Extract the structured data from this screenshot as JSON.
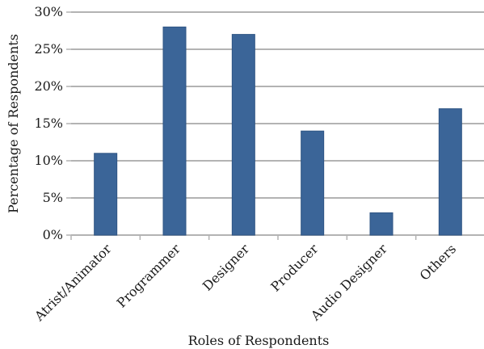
{
  "chart_data": {
    "type": "bar",
    "title": "",
    "xlabel": "Roles of Respondents",
    "ylabel": "Percentage of Respondents",
    "categories": [
      "Atrist/Animator",
      "Programmer",
      "Designer",
      "Producer",
      "Audio Designer",
      "Others"
    ],
    "values": [
      11,
      28,
      27,
      14,
      3,
      17
    ],
    "unit": "%",
    "ylim": [
      0,
      30
    ],
    "yticks": [
      0,
      5,
      10,
      15,
      20,
      25,
      30
    ],
    "ytick_labels": [
      "0%",
      "5%",
      "10%",
      "15%",
      "20%",
      "25%",
      "30%"
    ],
    "grid": true,
    "legend": "none",
    "bar_color": "#3b6598",
    "grid_color": "#b3b3b3"
  }
}
